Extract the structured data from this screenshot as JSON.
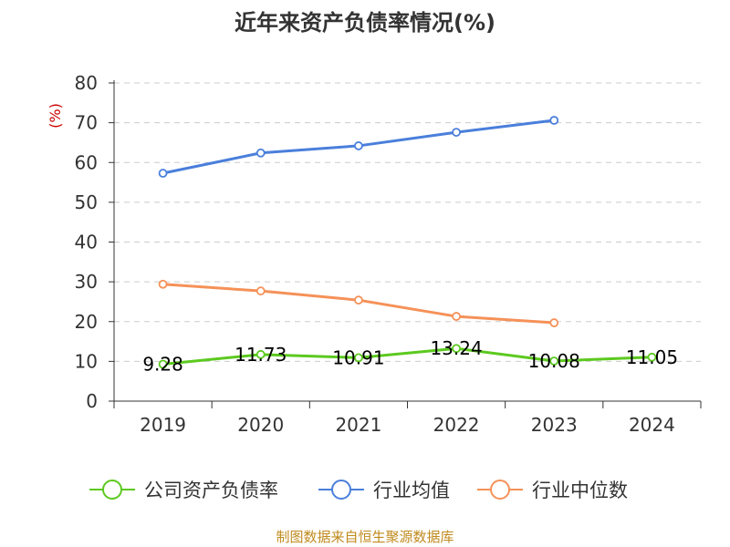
{
  "title": "近年来资产负债率情况(%)",
  "unit_label": "(%)",
  "source": "制图数据来自恒生聚源数据库",
  "colors": {
    "company": "#5cc91f",
    "industry_avg": "#4a7fdb",
    "industry_median": "#f59158",
    "grid": "#cccccc",
    "axis": "#333333"
  },
  "chart_data": {
    "type": "line",
    "categories": [
      "2019",
      "2020",
      "2021",
      "2022",
      "2023",
      "2024"
    ],
    "ylim": [
      0,
      80
    ],
    "yticks": [
      0,
      10,
      20,
      30,
      40,
      50,
      60,
      70,
      80
    ],
    "grid": true,
    "legend_position": "bottom",
    "series": [
      {
        "name": "公司资产负债率",
        "color": "#5cc91f",
        "values": [
          9.28,
          11.73,
          10.91,
          13.24,
          10.08,
          11.05
        ],
        "labels": [
          "9.28",
          "11.73",
          "10.91",
          "13.24",
          "10.08",
          "11.05"
        ]
      },
      {
        "name": "行业均值",
        "color": "#4a7fdb",
        "values": [
          57.3,
          62.4,
          64.2,
          67.6,
          70.6,
          null
        ]
      },
      {
        "name": "行业中位数",
        "color": "#f59158",
        "values": [
          29.4,
          27.7,
          25.4,
          21.3,
          19.7,
          null
        ]
      }
    ]
  }
}
